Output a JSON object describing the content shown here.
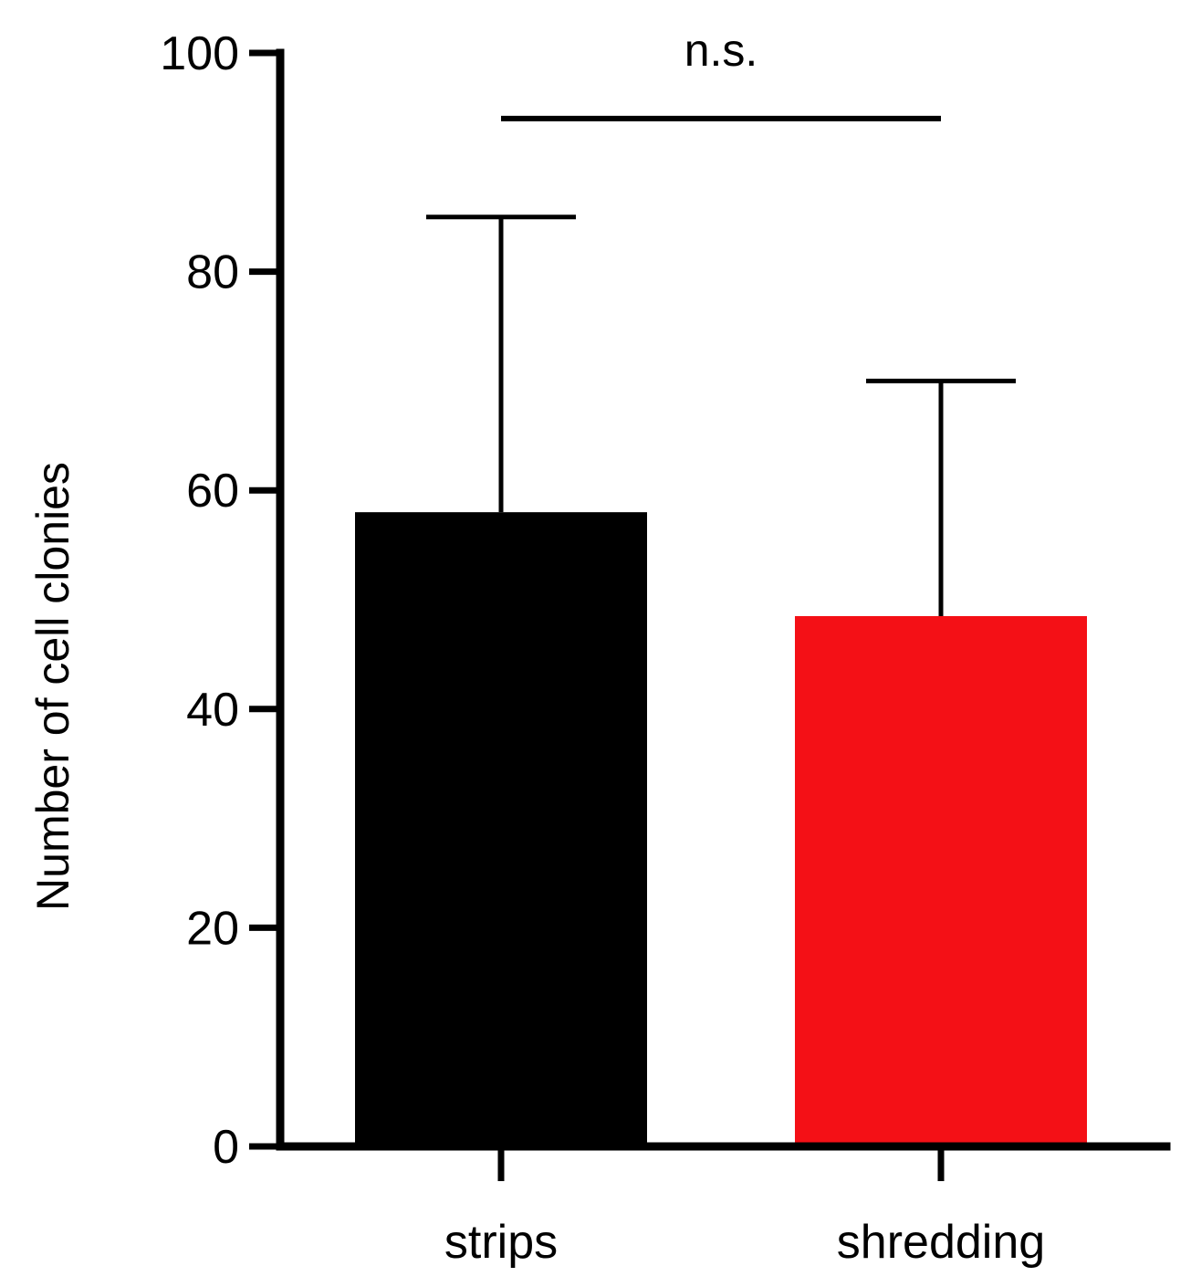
{
  "chart_data": {
    "type": "bar",
    "categories": [
      "strips",
      "shredding"
    ],
    "values": [
      58,
      48.5
    ],
    "error_upper": [
      85,
      70
    ],
    "bar_colors": [
      "#000000",
      "#f41016"
    ],
    "ylabel": "Number  of cell clonies",
    "xlabel": "",
    "ylim": [
      0,
      100
    ],
    "yticks": [
      0,
      20,
      40,
      60,
      80,
      100
    ],
    "ytick_labels": [
      "0",
      "20",
      "40",
      "60",
      "80",
      "100"
    ],
    "significance": {
      "label": "n.s.",
      "value": 94,
      "between": [
        "strips",
        "shredding"
      ]
    },
    "grid": false,
    "legend": "none"
  }
}
